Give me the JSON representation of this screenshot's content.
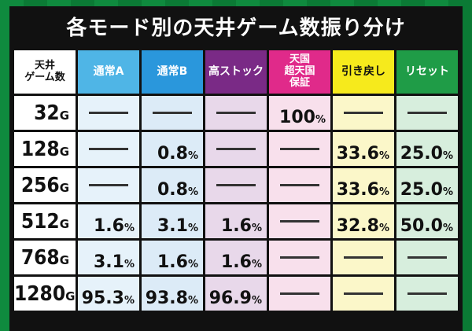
{
  "title": "各モード別の天井ゲーム数振り分け",
  "columns": {
    "games": "天井\nゲーム数",
    "normal_a": "通常A",
    "normal_b": "通常B",
    "high_stock": "高ストック",
    "heaven_guarantee": "天国\n超天国\n保証",
    "return": "引き戻し",
    "reset": "リセット"
  },
  "dash_symbol": "—",
  "percent_unit": "%",
  "game_unit": "G",
  "rows": [
    {
      "games": "32",
      "normal_a": null,
      "normal_b": null,
      "high_stock": null,
      "heaven_guarantee": "100",
      "return": null,
      "reset": null
    },
    {
      "games": "128",
      "normal_a": null,
      "normal_b": "0.8",
      "high_stock": null,
      "heaven_guarantee": null,
      "return": "33.6",
      "reset": "25.0"
    },
    {
      "games": "256",
      "normal_a": null,
      "normal_b": "0.8",
      "high_stock": null,
      "heaven_guarantee": null,
      "return": "33.6",
      "reset": "25.0"
    },
    {
      "games": "512",
      "normal_a": "1.6",
      "normal_b": "3.1",
      "high_stock": "1.6",
      "heaven_guarantee": null,
      "return": "32.8",
      "reset": "50.0"
    },
    {
      "games": "768",
      "normal_a": "3.1",
      "normal_b": "1.6",
      "high_stock": "1.6",
      "heaven_guarantee": null,
      "return": null,
      "reset": null
    },
    {
      "games": "1280",
      "normal_a": "95.3",
      "normal_b": "93.8",
      "high_stock": "96.9",
      "heaven_guarantee": null,
      "return": null,
      "reset": null
    }
  ],
  "colors": {
    "normal_a": "#4fb5e6",
    "normal_b": "#2a97dc",
    "high_stock": "#7a2a86",
    "heaven_guarantee": "#e02a8a",
    "return": "#f6ea1c",
    "reset": "#1f9c47"
  }
}
